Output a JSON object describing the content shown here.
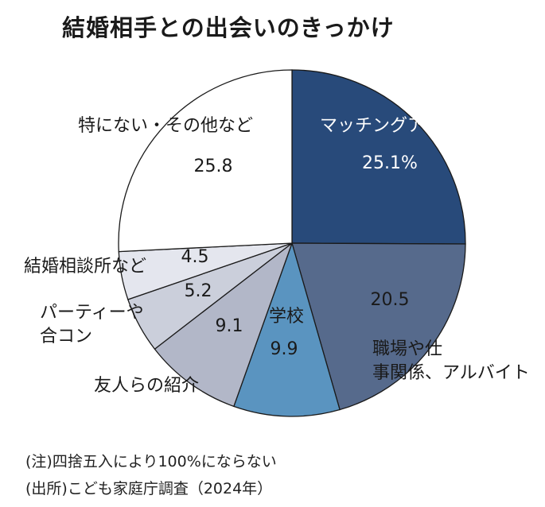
{
  "title": "結婚相手との出会いのきっかけ",
  "notes": {
    "note1": "(注)四捨五入により100%にならない",
    "note2": "(出所)こども家庭庁調査（2024年）"
  },
  "colors": {
    "matching": "#284a7a",
    "work": "#566a8c",
    "school": "#5a94c0",
    "friends": "#b2b7c8",
    "party": "#cbcfdb",
    "agency": "#e4e6ee",
    "none": "#ffffff",
    "stroke": "#1a1a1a"
  },
  "chart_data": {
    "type": "pie",
    "title": "結婚相手との出会いのきっかけ",
    "unit": "%",
    "start": "12 o'clock, clockwise",
    "slices": [
      {
        "label": "マッチングアプリ",
        "value": 25.1,
        "value_text": "25.1%",
        "color": "#284a7a"
      },
      {
        "label": "職場や仕事関係、アルバイト",
        "value": 20.5,
        "value_text": "20.5",
        "color": "#566a8c"
      },
      {
        "label": "学校",
        "value": 9.9,
        "value_text": "9.9",
        "color": "#5a94c0"
      },
      {
        "label": "友人らの紹介",
        "value": 9.1,
        "value_text": "9.1",
        "color": "#b2b7c8"
      },
      {
        "label": "パーティーや合コン",
        "value": 5.2,
        "value_text": "5.2",
        "color": "#cbcfdb"
      },
      {
        "label": "結婚相談所など",
        "value": 4.5,
        "value_text": "4.5",
        "color": "#e4e6ee"
      },
      {
        "label": "特にない・その他など",
        "value": 25.8,
        "value_text": "25.8",
        "color": "#ffffff"
      }
    ]
  }
}
